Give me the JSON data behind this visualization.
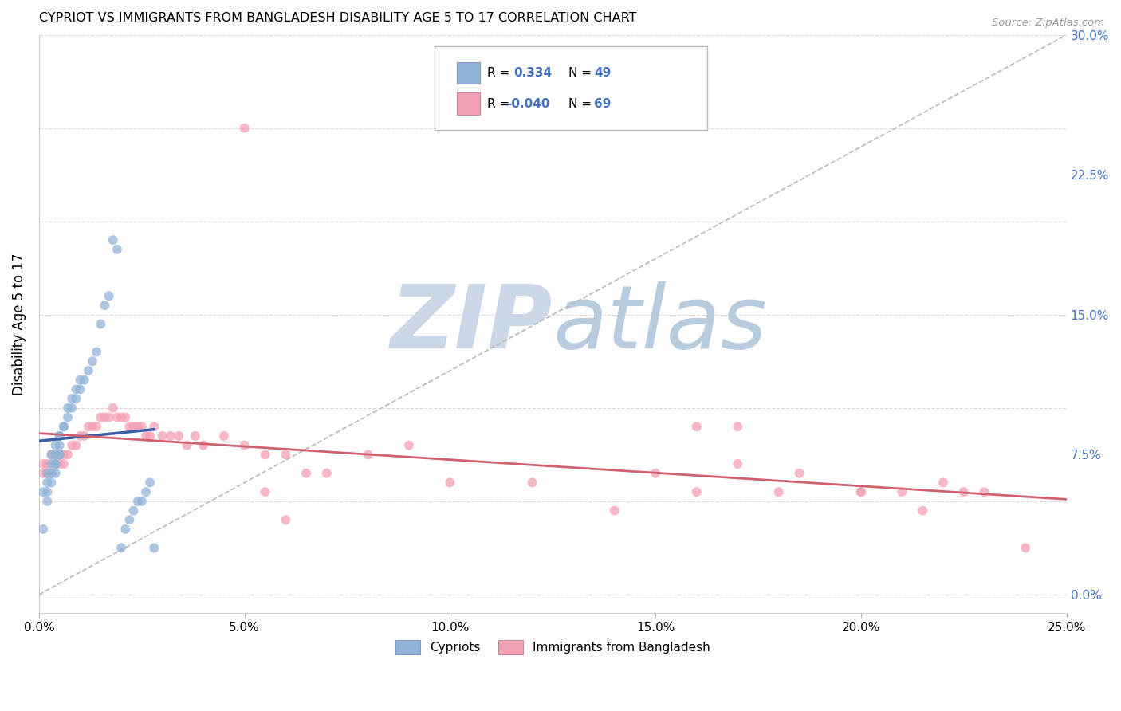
{
  "title": "CYPRIOT VS IMMIGRANTS FROM BANGLADESH DISABILITY AGE 5 TO 17 CORRELATION CHART",
  "source": "Source: ZipAtlas.com",
  "ylabel": "Disability Age 5 to 17",
  "xlim": [
    0.0,
    0.25
  ],
  "ylim": [
    -0.01,
    0.3
  ],
  "xlabel_vals": [
    0.0,
    0.05,
    0.1,
    0.15,
    0.2,
    0.25
  ],
  "xlabel_labels": [
    "0.0%",
    "5.0%",
    "10.0%",
    "15.0%",
    "20.0%",
    "25.0%"
  ],
  "ylabel_vals": [
    0.0,
    0.075,
    0.15,
    0.225,
    0.3
  ],
  "ylabel_labels": [
    "0.0%",
    "7.5%",
    "15.0%",
    "22.5%",
    "30.0%"
  ],
  "cypriot_color": "#92b4d8",
  "bangladesh_color": "#f4a0b4",
  "cypriot_line_color": "#3a5fa8",
  "bangladesh_line_color": "#d06070",
  "diagonal_color": "#b8b8b8",
  "watermark_color": "#ccd8e8",
  "grid_color": "#d8d8dc",
  "cypriot_x": [
    0.001,
    0.001,
    0.002,
    0.002,
    0.002,
    0.002,
    0.003,
    0.003,
    0.003,
    0.003,
    0.003,
    0.004,
    0.004,
    0.004,
    0.004,
    0.004,
    0.005,
    0.005,
    0.005,
    0.005,
    0.005,
    0.006,
    0.006,
    0.007,
    0.007,
    0.008,
    0.008,
    0.009,
    0.009,
    0.01,
    0.01,
    0.011,
    0.012,
    0.013,
    0.014,
    0.015,
    0.016,
    0.017,
    0.018,
    0.019,
    0.02,
    0.021,
    0.022,
    0.023,
    0.024,
    0.025,
    0.026,
    0.027,
    0.028
  ],
  "cypriot_y": [
    0.035,
    0.055,
    0.05,
    0.055,
    0.06,
    0.065,
    0.06,
    0.065,
    0.065,
    0.07,
    0.075,
    0.065,
    0.07,
    0.07,
    0.075,
    0.08,
    0.075,
    0.075,
    0.08,
    0.085,
    0.085,
    0.09,
    0.09,
    0.095,
    0.1,
    0.1,
    0.105,
    0.105,
    0.11,
    0.11,
    0.115,
    0.115,
    0.12,
    0.125,
    0.13,
    0.145,
    0.155,
    0.16,
    0.19,
    0.185,
    0.025,
    0.035,
    0.04,
    0.045,
    0.05,
    0.05,
    0.055,
    0.06,
    0.025
  ],
  "bangladesh_x": [
    0.001,
    0.001,
    0.002,
    0.002,
    0.003,
    0.003,
    0.004,
    0.004,
    0.005,
    0.005,
    0.006,
    0.006,
    0.007,
    0.008,
    0.009,
    0.01,
    0.011,
    0.012,
    0.013,
    0.014,
    0.015,
    0.016,
    0.017,
    0.018,
    0.019,
    0.02,
    0.021,
    0.022,
    0.023,
    0.024,
    0.025,
    0.026,
    0.027,
    0.028,
    0.03,
    0.032,
    0.034,
    0.036,
    0.038,
    0.04,
    0.045,
    0.05,
    0.055,
    0.06,
    0.065,
    0.07,
    0.08,
    0.09,
    0.1,
    0.12,
    0.14,
    0.15,
    0.16,
    0.17,
    0.18,
    0.2,
    0.21,
    0.22,
    0.23,
    0.16,
    0.17,
    0.185,
    0.2,
    0.215,
    0.225,
    0.24,
    0.05,
    0.055,
    0.06
  ],
  "bangladesh_y": [
    0.065,
    0.07,
    0.065,
    0.07,
    0.065,
    0.075,
    0.07,
    0.075,
    0.07,
    0.075,
    0.07,
    0.075,
    0.075,
    0.08,
    0.08,
    0.085,
    0.085,
    0.09,
    0.09,
    0.09,
    0.095,
    0.095,
    0.095,
    0.1,
    0.095,
    0.095,
    0.095,
    0.09,
    0.09,
    0.09,
    0.09,
    0.085,
    0.085,
    0.09,
    0.085,
    0.085,
    0.085,
    0.08,
    0.085,
    0.08,
    0.085,
    0.08,
    0.075,
    0.075,
    0.065,
    0.065,
    0.075,
    0.08,
    0.06,
    0.06,
    0.045,
    0.065,
    0.055,
    0.07,
    0.055,
    0.055,
    0.055,
    0.06,
    0.055,
    0.09,
    0.09,
    0.065,
    0.055,
    0.045,
    0.055,
    0.025,
    0.25,
    0.055,
    0.04
  ]
}
